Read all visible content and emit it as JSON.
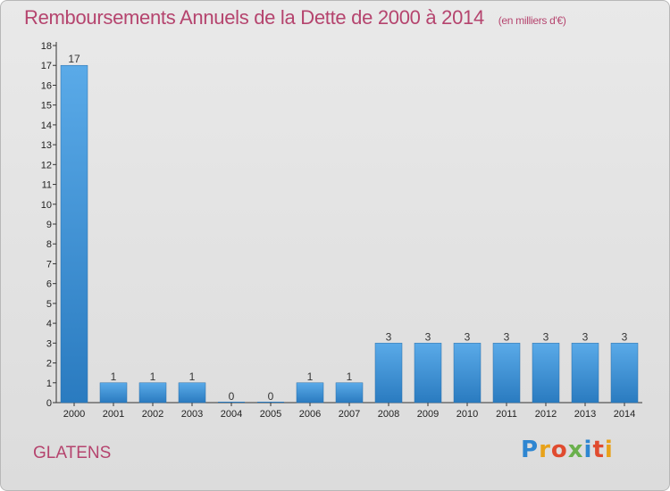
{
  "header": {
    "title": "Remboursements Annuels de la Dette de 2000 à 2014",
    "unit": "(en milliers d'€)"
  },
  "footer": {
    "city": "GLATENS",
    "logo_text": "Proxiti"
  },
  "colors": {
    "title": "#b5446e",
    "bar_top": "#5aaae8",
    "bar_bottom": "#2a7bc0"
  },
  "chart_data": {
    "type": "bar",
    "title": "Remboursements Annuels de la Dette de 2000 à 2014",
    "subtitle": "(en milliers d'€)",
    "xlabel": "",
    "ylabel": "",
    "categories": [
      "2000",
      "2001",
      "2002",
      "2003",
      "2004",
      "2005",
      "2006",
      "2007",
      "2008",
      "2009",
      "2010",
      "2011",
      "2012",
      "2013",
      "2014"
    ],
    "values": [
      17,
      1,
      1,
      1,
      0,
      0,
      1,
      1,
      3,
      3,
      3,
      3,
      3,
      3,
      3
    ],
    "ylim": [
      0,
      18
    ],
    "yticks": [
      "0",
      "1",
      "2",
      "3",
      "4",
      "5",
      "6",
      "7",
      "8",
      "9",
      "10",
      "11",
      "12",
      "13",
      "14",
      "15",
      "16",
      "17",
      "18"
    ],
    "grid": false,
    "legend": "none"
  }
}
